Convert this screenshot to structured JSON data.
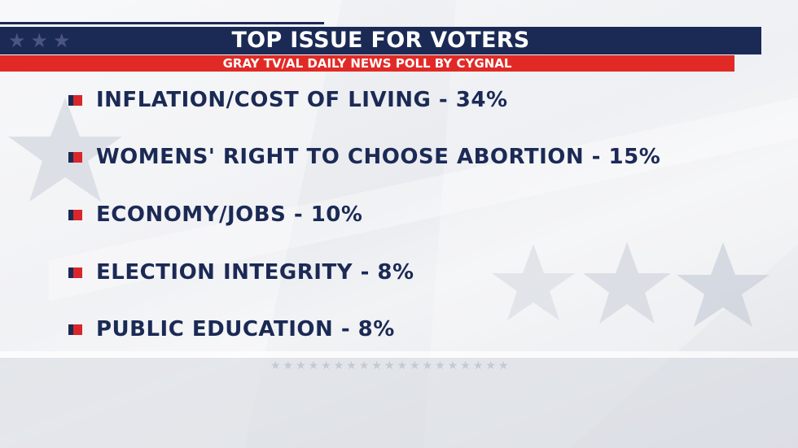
{
  "header": {
    "title": "TOP ISSUE FOR VOTERS",
    "subtitle": "GRAY TV/AL DAILY NEWS POLL BY CYGNAL"
  },
  "issues": [
    {
      "label": "INFLATION/COST OF LIVING - 34%"
    },
    {
      "label": "WOMENS' RIGHT TO CHOOSE ABORTION - 15%"
    },
    {
      "label": "ECONOMY/JOBS - 10%"
    },
    {
      "label": "ELECTION INTEGRITY - 8%"
    },
    {
      "label": "PUBLIC EDUCATION - 8%"
    }
  ],
  "decor": {
    "title_stars": "★★★",
    "bottom_stars": "★★★★★★★★★★★★★★★★★★★"
  },
  "colors": {
    "navy": "#1b2a55",
    "red": "#e12a26",
    "background": "#eceef1"
  }
}
